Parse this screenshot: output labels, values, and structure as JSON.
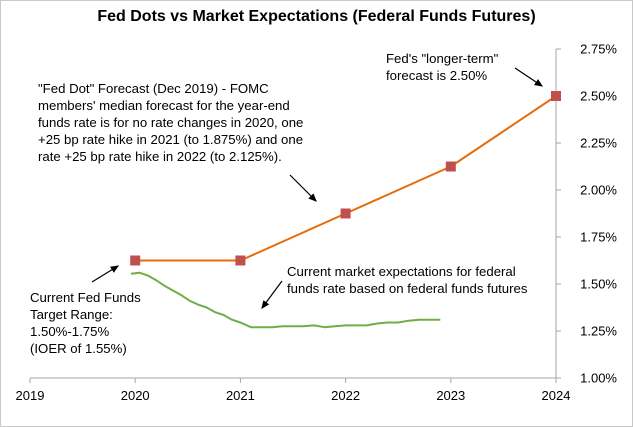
{
  "chart_data": {
    "type": "line",
    "title": "Fed Dots vs Market Expectations (Federal Funds Futures)",
    "xlabel": "",
    "ylabel": "",
    "xlim": [
      2019,
      2024
    ],
    "ylim": [
      1.0,
      2.75
    ],
    "x_ticks": [
      "2019",
      "2020",
      "2021",
      "2022",
      "2023",
      "2024"
    ],
    "y_ticks": [
      "1.00%",
      "1.25%",
      "1.50%",
      "1.75%",
      "2.00%",
      "2.25%",
      "2.50%",
      "2.75%"
    ],
    "y_axis_side": "right",
    "grid": false,
    "legend": "none",
    "series": [
      {
        "color": "#E46C0A",
        "marker_color": "#C0504D",
        "marker": "square",
        "x": [
          2020,
          2021,
          2022,
          2023,
          2024
        ],
        "y": [
          1.625,
          1.625,
          1.875,
          2.125,
          2.5
        ]
      },
      {
        "color": "#70AD47",
        "marker": "none",
        "x": [
          2019.96,
          2020.04,
          2020.12,
          2020.2,
          2020.28,
          2020.36,
          2020.44,
          2020.52,
          2020.6,
          2020.68,
          2020.76,
          2020.84,
          2020.92,
          2021.0,
          2021.1,
          2021.2,
          2021.3,
          2021.4,
          2021.5,
          2021.6,
          2021.7,
          2021.8,
          2021.9,
          2022.0,
          2022.1,
          2022.2,
          2022.3,
          2022.4,
          2022.5,
          2022.6,
          2022.7,
          2022.8,
          2022.9
        ],
        "y": [
          1.555,
          1.56,
          1.545,
          1.52,
          1.49,
          1.465,
          1.44,
          1.41,
          1.39,
          1.375,
          1.35,
          1.335,
          1.31,
          1.295,
          1.27,
          1.27,
          1.27,
          1.275,
          1.275,
          1.275,
          1.28,
          1.27,
          1.275,
          1.28,
          1.28,
          1.28,
          1.29,
          1.295,
          1.295,
          1.305,
          1.31,
          1.31,
          1.31
        ]
      }
    ],
    "annotations": {
      "fomc": [
        "\"Fed Dot\" Forecast (Dec 2019) - FOMC",
        "members' median forecast for the year-end",
        "funds rate is for no rate changes in 2020, one",
        "+25 bp rate hike in 2021 (to 1.875%) and one",
        "rate +25 bp rate hike in 2022 (to 2.125%)."
      ],
      "longer_term": [
        "Fed's \"longer-term\"",
        "forecast is 2.50%"
      ],
      "market": [
        "Current market  expectations for federal",
        "funds rate based on federal funds futures"
      ],
      "current": [
        "Current Fed Funds",
        "Target Range:",
        "1.50%-1.75%",
        "(IOER of 1.55%)"
      ]
    }
  }
}
